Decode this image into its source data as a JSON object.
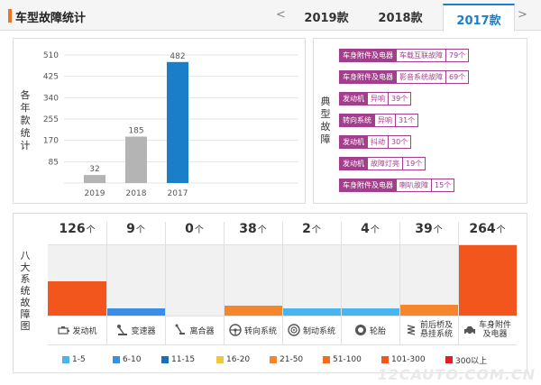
{
  "header": {
    "title": "车型故障统计",
    "prev_arrow": "<",
    "next_arrow": ">",
    "tabs": [
      "2019款",
      "2018款",
      "2017款"
    ],
    "active_tab": "2017款"
  },
  "annual": {
    "label_chars": [
      "各",
      "年",
      "款",
      "统",
      "计"
    ]
  },
  "chart_data": {
    "type": "bar",
    "categories": [
      "2019",
      "2018",
      "2017"
    ],
    "values": [
      32,
      185,
      482
    ],
    "yticks": [
      85,
      170,
      255,
      340,
      425,
      510
    ],
    "ylim": [
      0,
      510
    ],
    "colors": [
      "#b4b4b4",
      "#b4b4b4",
      "#1a7fc8"
    ],
    "value_labels": [
      "32",
      "185",
      "482"
    ]
  },
  "typical": {
    "label_chars": [
      "典",
      "型",
      "故",
      "障"
    ],
    "items": [
      {
        "category": "车身附件及电器",
        "fault": "车载互联故障",
        "count": "79个"
      },
      {
        "category": "车身附件及电器",
        "fault": "影音系统故障",
        "count": "69个"
      },
      {
        "category": "发动机",
        "fault": "异响",
        "count": "39个"
      },
      {
        "category": "转向系统",
        "fault": "异响",
        "count": "31个"
      },
      {
        "category": "发动机",
        "fault": "抖动",
        "count": "30个"
      },
      {
        "category": "发动机",
        "fault": "故障灯亮",
        "count": "19个"
      },
      {
        "category": "车身附件及电器",
        "fault": "喇叭故障",
        "count": "15个"
      }
    ]
  },
  "systems": {
    "label_chars": [
      "八",
      "大",
      "系",
      "统",
      "故",
      "障",
      "图"
    ],
    "unit": "个",
    "items": [
      {
        "name": "发动机",
        "count": "126",
        "value": 126,
        "color": "#f2561d",
        "icon": "engine-icon"
      },
      {
        "name": "变速器",
        "count": "9",
        "value": 9,
        "color": "#3a8ee6",
        "icon": "gear-shift-icon"
      },
      {
        "name": "离合器",
        "count": "0",
        "value": 0,
        "color": "#f1f1f1",
        "icon": "clutch-pedal-icon"
      },
      {
        "name": "转向系统",
        "count": "38",
        "value": 38,
        "color": "#f5862b",
        "icon": "steering-wheel-icon"
      },
      {
        "name": "制动系统",
        "count": "2",
        "value": 2,
        "color": "#48b5f0",
        "icon": "brake-disc-icon"
      },
      {
        "name": "轮胎",
        "count": "4",
        "value": 4,
        "color": "#48b5f0",
        "icon": "tire-icon"
      },
      {
        "name": "前后桥及悬挂系统",
        "name_lines": [
          "前后桥及",
          "悬挂系统"
        ],
        "count": "39",
        "value": 39,
        "color": "#f5862b",
        "icon": "suspension-icon"
      },
      {
        "name": "车身附件及电器",
        "name_lines": [
          "车身附件",
          "及电器"
        ],
        "count": "264",
        "value": 264,
        "color": "#f2561d",
        "icon": "car-body-icon"
      }
    ]
  },
  "legend": [
    {
      "label": "1-5",
      "color": "#48b5f0"
    },
    {
      "label": "6-10",
      "color": "#3a8ee6"
    },
    {
      "label": "11-15",
      "color": "#1a6fb5"
    },
    {
      "label": "16-20",
      "color": "#f3c63f"
    },
    {
      "label": "21-50",
      "color": "#f5862b"
    },
    {
      "label": "51-100",
      "color": "#f06d22"
    },
    {
      "label": "101-300",
      "color": "#f2561d"
    },
    {
      "label": "300以上",
      "color": "#e02020"
    }
  ],
  "watermark": "12CAUTO.COM.CN"
}
